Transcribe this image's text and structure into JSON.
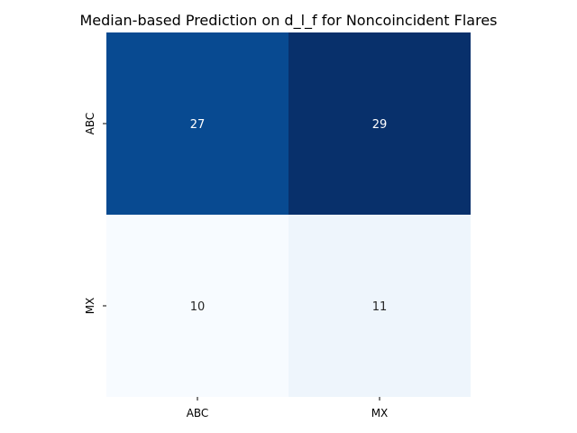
{
  "chart_data": {
    "type": "heatmap",
    "title": "Median-based Prediction on d_l_f for Noncoincident Flares",
    "xlabel": "",
    "ylabel": "",
    "x_categories": [
      "ABC",
      "MX"
    ],
    "y_categories": [
      "ABC",
      "MX"
    ],
    "values": [
      [
        27,
        29
      ],
      [
        10,
        11
      ]
    ],
    "colormap": "Blues",
    "colorbar": false,
    "grid": false,
    "cell_colors": [
      [
        "#084a91",
        "#08306b"
      ],
      [
        "#f7fbff",
        "#eef5fc"
      ]
    ],
    "label_colors": [
      [
        "#ffffff",
        "#ffffff"
      ],
      [
        "#262626",
        "#262626"
      ]
    ]
  }
}
